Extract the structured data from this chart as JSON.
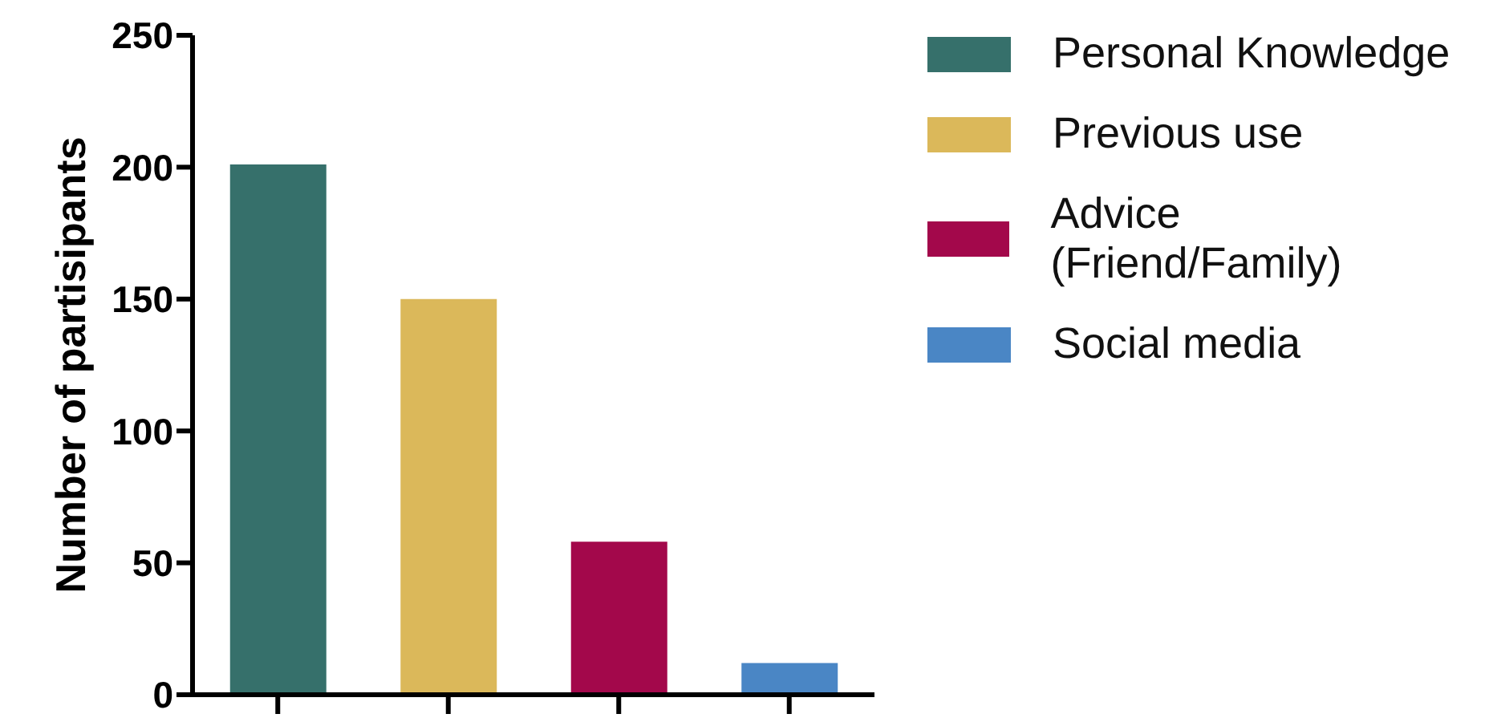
{
  "chart_data": {
    "type": "bar",
    "ylabel": "Number of partisipants",
    "categories": [
      null,
      null,
      null,
      null
    ],
    "stacked": true,
    "series": [
      {
        "name": "Personal Knowledge",
        "color": "#36706b",
        "values": [
          201,
          null,
          null,
          null
        ]
      },
      {
        "name": "Previous use",
        "color": "#dbb85a",
        "values": [
          null,
          150,
          null,
          null
        ]
      },
      {
        "name": "Advice (Friend/Family)",
        "color": "#a3084b",
        "values": [
          null,
          null,
          58,
          null
        ]
      },
      {
        "name": "Social media",
        "color": "#4a86c5",
        "values": [
          null,
          null,
          null,
          12
        ]
      }
    ],
    "ylim": [
      0,
      250
    ],
    "yticks": [
      0,
      50,
      100,
      150,
      200,
      250
    ],
    "grid": false,
    "legend": "top right"
  }
}
